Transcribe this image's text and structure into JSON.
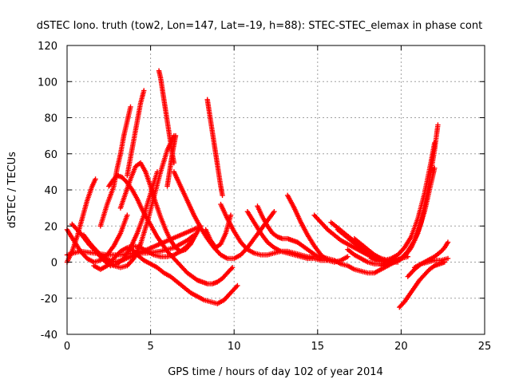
{
  "chart_data": {
    "type": "scatter",
    "title": "dSTEC Iono. truth (tow2, Lon=147, Lat=-19, h=88): STEC-STEC_elemax in phase cont",
    "xlabel": "GPS time / hours of day 102 of year 2014",
    "ylabel": "dSTEC  / TECUs",
    "xlim": [
      0,
      25
    ],
    "ylim": [
      -40,
      120
    ],
    "xticks": [
      0,
      5,
      10,
      15,
      20,
      25
    ],
    "yticks": [
      -40,
      -20,
      0,
      20,
      40,
      60,
      80,
      100,
      120
    ],
    "grid": true,
    "marker": "+",
    "marker_color": "#ff0000",
    "series": [
      {
        "x": [
          0.0,
          0.3,
          0.6,
          0.9,
          1.2,
          1.5,
          1.7
        ],
        "y": [
          0,
          6,
          14,
          24,
          34,
          42,
          46
        ]
      },
      {
        "x": [
          0.0,
          0.4,
          0.8,
          1.2,
          1.6,
          2.0,
          2.4,
          2.8,
          3.2,
          3.6
        ],
        "y": [
          18,
          12,
          6,
          2,
          0,
          1,
          4,
          9,
          16,
          26
        ]
      },
      {
        "x": [
          0.3,
          0.8,
          1.3,
          1.8,
          2.3,
          2.8,
          3.3,
          3.8,
          4.3,
          4.8,
          5.3,
          5.8,
          6.3,
          6.8,
          7.3,
          7.8
        ],
        "y": [
          21,
          16,
          10,
          5,
          2,
          0,
          1,
          3,
          5,
          7,
          9,
          11,
          13,
          15,
          17,
          19
        ]
      },
      {
        "x": [
          0.0,
          0.8,
          1.6,
          2.4,
          3.2,
          4.0,
          4.8,
          5.6,
          6.4,
          7.2,
          7.6
        ],
        "y": [
          4,
          6,
          5,
          4,
          4,
          5,
          5,
          6,
          8,
          12,
          15
        ]
      },
      {
        "x": [
          1.0,
          1.4,
          1.8,
          2.2,
          2.6,
          3.0,
          3.4,
          3.8,
          4.2,
          4.6,
          5.0,
          5.4
        ],
        "y": [
          15,
          10,
          5,
          1,
          -2,
          -1,
          2,
          8,
          16,
          26,
          38,
          50
        ]
      },
      {
        "x": [
          1.2,
          1.6,
          2.0,
          2.4,
          2.8,
          3.2,
          3.6,
          4.0,
          4.4,
          4.8,
          5.2,
          5.6,
          6.0,
          6.4
        ],
        "y": [
          12,
          8,
          4,
          1,
          -2,
          -3,
          -2,
          2,
          10,
          22,
          36,
          50,
          62,
          70
        ]
      },
      {
        "x": [
          2.0,
          2.4,
          2.8,
          3.0,
          3.2,
          3.4,
          3.6,
          3.8
        ],
        "y": [
          20,
          32,
          42,
          52,
          60,
          70,
          78,
          86
        ]
      },
      {
        "x": [
          1.6,
          2.0,
          2.4,
          2.8,
          3.2,
          3.6,
          4.0,
          4.4,
          4.8,
          5.2,
          5.6,
          6.0,
          6.4,
          6.8,
          7.2,
          7.5
        ],
        "y": [
          -2,
          -4,
          -2,
          2,
          6,
          8,
          9,
          8,
          6,
          4,
          3,
          3,
          4,
          6,
          9,
          12
        ]
      },
      {
        "x": [
          2.5,
          2.8,
          3.0,
          3.3,
          3.6,
          3.9,
          4.2,
          4.5,
          4.8,
          5.1,
          5.4,
          5.7,
          6.0,
          6.3,
          6.6,
          6.9,
          7.2,
          7.5,
          7.8,
          8.1,
          8.4,
          8.7,
          9.0,
          9.3,
          9.6,
          9.9
        ],
        "y": [
          42,
          46,
          48,
          47,
          44,
          40,
          35,
          29,
          24,
          19,
          14,
          10,
          6,
          3,
          0,
          -3,
          -6,
          -8,
          -10,
          -11,
          -12,
          -12,
          -11,
          -9,
          -6,
          -3
        ]
      },
      {
        "x": [
          3.6,
          3.8,
          4.0,
          4.2,
          4.4,
          4.6
        ],
        "y": [
          48,
          58,
          68,
          78,
          88,
          95
        ]
      },
      {
        "x": [
          3.2,
          3.5,
          3.8,
          4.1,
          4.4,
          4.7,
          5.0,
          5.3,
          5.6,
          5.9,
          6.2,
          6.5,
          6.8,
          7.1,
          7.4,
          7.7,
          8.0
        ],
        "y": [
          30,
          38,
          46,
          53,
          55,
          50,
          42,
          33,
          25,
          18,
          12,
          8,
          6,
          7,
          10,
          15,
          20
        ]
      },
      {
        "x": [
          3.8,
          4.2,
          4.6,
          5.0,
          5.4,
          5.8,
          6.2,
          6.6,
          7.0,
          7.4,
          7.8,
          8.2,
          8.6,
          9.0,
          9.4,
          9.8,
          10.2
        ],
        "y": [
          8,
          4,
          1,
          -1,
          -3,
          -6,
          -8,
          -11,
          -14,
          -17,
          -19,
          -21,
          -22,
          -23,
          -21,
          -17,
          -13
        ]
      },
      {
        "x": [
          5.5,
          5.6,
          5.7,
          5.8,
          5.9,
          6.0,
          6.1,
          6.2,
          6.3,
          6.4
        ],
        "y": [
          106,
          102,
          96,
          90,
          84,
          78,
          72,
          66,
          60,
          55
        ]
      },
      {
        "x": [
          6.0,
          6.1,
          6.2,
          6.3,
          6.4,
          6.5
        ],
        "y": [
          42,
          48,
          54,
          60,
          65,
          70
        ]
      },
      {
        "x": [
          6.4,
          6.8,
          7.2,
          7.6,
          8.0,
          8.4,
          8.8,
          9.2,
          9.6,
          10.0,
          10.4,
          10.8,
          11.2,
          11.6,
          12.0,
          12.4
        ],
        "y": [
          50,
          42,
          34,
          26,
          19,
          13,
          8,
          4,
          2,
          2,
          4,
          8,
          13,
          18,
          23,
          28
        ]
      },
      {
        "x": [
          8.4,
          8.5,
          8.6,
          8.7,
          8.8,
          8.9,
          9.0,
          9.1,
          9.2,
          9.3
        ],
        "y": [
          90,
          84,
          78,
          72,
          66,
          60,
          54,
          48,
          42,
          37
        ]
      },
      {
        "x": [
          8.3,
          8.6,
          8.9,
          9.2,
          9.5,
          9.8
        ],
        "y": [
          18,
          12,
          8,
          10,
          16,
          26
        ]
      },
      {
        "x": [
          9.2,
          9.6,
          10.0,
          10.4,
          10.8,
          11.2,
          11.6,
          12.0,
          12.4,
          12.8,
          13.2,
          13.6,
          14.0,
          14.4,
          14.8
        ],
        "y": [
          32,
          24,
          17,
          11,
          7,
          5,
          4,
          4,
          5,
          6,
          6,
          5,
          4,
          3,
          3
        ]
      },
      {
        "x": [
          10.8,
          11.2,
          11.6,
          12.0,
          12.4,
          12.8,
          13.2,
          13.6,
          14.0,
          14.4,
          14.8,
          15.2,
          15.6
        ],
        "y": [
          28,
          22,
          16,
          11,
          8,
          6,
          5,
          4,
          3,
          2,
          2,
          1,
          1
        ]
      },
      {
        "x": [
          11.4,
          11.7,
          12.0,
          12.3,
          12.6,
          12.9,
          13.2,
          13.5,
          13.8,
          14.1,
          14.4,
          14.7,
          15.0,
          15.3
        ],
        "y": [
          31,
          25,
          20,
          16,
          14,
          13,
          13,
          12,
          11,
          9,
          7,
          5,
          3,
          2
        ]
      },
      {
        "x": [
          13.2,
          13.6,
          14.0,
          14.4,
          14.8,
          15.2,
          15.6,
          16.0,
          16.4,
          16.8
        ],
        "y": [
          37,
          30,
          22,
          15,
          9,
          4,
          1,
          0,
          1,
          3
        ]
      },
      {
        "x": [
          14.8,
          15.2,
          15.6,
          16.0,
          16.4,
          16.8,
          17.2,
          17.6,
          18.0,
          18.4,
          18.8,
          19.2
        ],
        "y": [
          26,
          22,
          18,
          15,
          12,
          10,
          8,
          6,
          4,
          3,
          2,
          1
        ]
      },
      {
        "x": [
          15.8,
          16.2,
          16.6,
          17.0,
          17.4,
          17.8,
          18.2,
          18.6,
          19.0,
          19.4,
          19.8
        ],
        "y": [
          22,
          19,
          16,
          13,
          10,
          7,
          4,
          2,
          1,
          0,
          0
        ]
      },
      {
        "x": [
          16.2,
          16.6,
          17.0,
          17.4,
          17.8,
          18.2,
          18.6,
          19.0,
          19.4,
          19.8,
          20.0
        ],
        "y": [
          18,
          15,
          12,
          9,
          6,
          3,
          1,
          0,
          0,
          1,
          2
        ]
      },
      {
        "x": [
          14.4,
          14.8,
          15.2,
          15.6,
          16.0,
          16.4,
          16.8,
          17.2,
          17.6,
          18.0,
          18.4,
          18.8,
          19.2,
          19.6,
          20.0
        ],
        "y": [
          2,
          3,
          3,
          2,
          1,
          -1,
          -2,
          -4,
          -5,
          -6,
          -6,
          -4,
          -2,
          0,
          2
        ]
      },
      {
        "x": [
          17.2,
          17.6,
          18.0,
          18.4,
          18.8,
          19.2,
          19.6,
          20.0,
          20.4
        ],
        "y": [
          13,
          10,
          7,
          4,
          2,
          1,
          1,
          2,
          3
        ]
      },
      {
        "x": [
          16.8,
          17.2,
          17.6,
          18.0,
          18.4,
          18.8,
          19.2,
          19.6
        ],
        "y": [
          7,
          4,
          2,
          0,
          -1,
          -1,
          0,
          2
        ]
      },
      {
        "x": [
          18.2,
          18.6,
          19.0,
          19.4,
          19.8,
          20.2,
          20.6,
          21.0,
          21.4,
          21.8,
          22.0
        ],
        "y": [
          2,
          1,
          1,
          2,
          4,
          8,
          14,
          24,
          38,
          56,
          66
        ]
      },
      {
        "x": [
          18.8,
          19.2,
          19.6,
          20.0,
          20.4,
          20.8,
          21.2,
          21.6,
          22.0,
          22.2
        ],
        "y": [
          -2,
          -1,
          0,
          2,
          6,
          12,
          22,
          40,
          62,
          76
        ]
      },
      {
        "x": [
          19.4,
          19.8,
          20.2,
          20.6,
          21.0,
          21.4,
          21.8,
          22.0
        ],
        "y": [
          0,
          1,
          3,
          8,
          16,
          28,
          44,
          52
        ]
      },
      {
        "x": [
          19.9,
          20.2,
          20.5,
          20.8,
          21.1,
          21.4,
          21.7,
          22.0,
          22.3,
          22.6
        ],
        "y": [
          -25,
          -22,
          -18,
          -14,
          -10,
          -7,
          -4,
          -2,
          -1,
          0
        ]
      },
      {
        "x": [
          20.4,
          20.8,
          21.2,
          21.6,
          22.0,
          22.4,
          22.8
        ],
        "y": [
          -8,
          -4,
          -1,
          0,
          1,
          1,
          2
        ]
      },
      {
        "x": [
          20.8,
          21.2,
          21.6,
          22.0,
          22.4,
          22.6,
          22.8
        ],
        "y": [
          -3,
          -1,
          1,
          3,
          6,
          8,
          11
        ]
      }
    ]
  }
}
